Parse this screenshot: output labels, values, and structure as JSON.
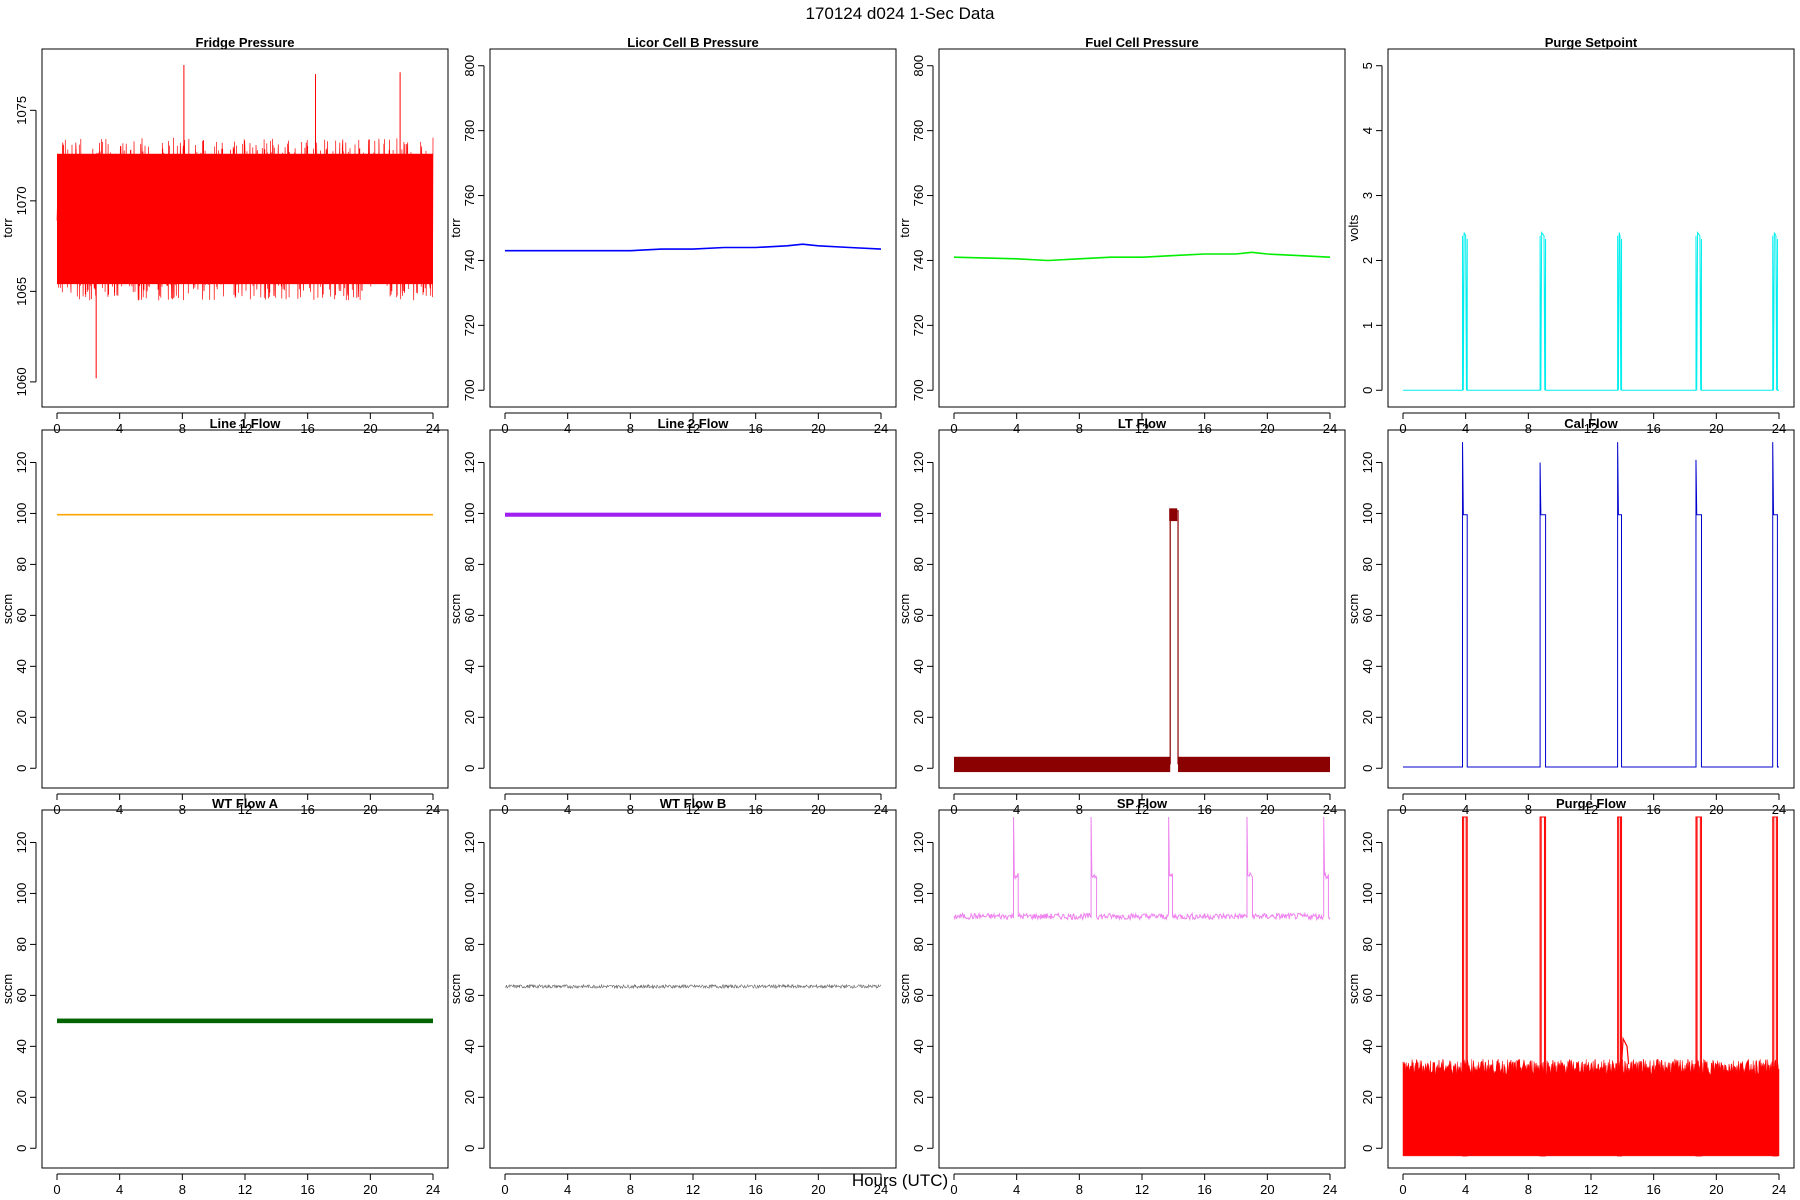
{
  "figure": {
    "title": "170124   d024   1-Sec Data",
    "xlabel": "Hours (UTC)"
  },
  "chart_data": [
    {
      "type": "line",
      "title": "Fridge Pressure",
      "ylabel": "torr",
      "color": "#ff0000",
      "xlim": [
        0,
        24
      ],
      "ylim": [
        1059,
        1078
      ],
      "xticks": [
        0,
        4,
        8,
        12,
        16,
        20,
        24
      ],
      "yticks": [
        1060,
        1065,
        1070,
        1075
      ],
      "style": "noise",
      "base": 1069,
      "amp": 4.5,
      "spikes": [
        [
          2.5,
          1060.2
        ],
        [
          8.1,
          1077.5
        ],
        [
          16.5,
          1077.0
        ],
        [
          21.9,
          1077.1
        ],
        [
          13.8,
          1065.5
        ]
      ],
      "x": [
        0,
        4,
        8,
        12,
        16,
        20,
        24
      ],
      "y": [
        1069,
        1069,
        1069,
        1069,
        1069,
        1069,
        1069
      ]
    },
    {
      "type": "line",
      "title": "Licor Cell B Pressure",
      "ylabel": "torr",
      "color": "#0000ff",
      "xlim": [
        0,
        24
      ],
      "ylim": [
        697,
        803
      ],
      "xticks": [
        0,
        4,
        8,
        12,
        16,
        20,
        24
      ],
      "yticks": [
        700,
        720,
        740,
        760,
        780,
        800
      ],
      "style": "line",
      "x": [
        0,
        4,
        8,
        10,
        12,
        14,
        16,
        18,
        19,
        20,
        22,
        24
      ],
      "y": [
        743,
        743,
        743,
        743.5,
        743.5,
        744,
        744,
        744.5,
        745,
        744.5,
        744,
        743.5
      ]
    },
    {
      "type": "line",
      "title": "Fuel Cell Pressure",
      "ylabel": "torr",
      "color": "#00ee00",
      "xlim": [
        0,
        24
      ],
      "ylim": [
        697,
        803
      ],
      "xticks": [
        0,
        4,
        8,
        12,
        16,
        20,
        24
      ],
      "yticks": [
        700,
        720,
        740,
        760,
        780,
        800
      ],
      "style": "line",
      "x": [
        0,
        4,
        6,
        8,
        10,
        12,
        14,
        16,
        18,
        19,
        20,
        22,
        24
      ],
      "y": [
        741,
        740.5,
        740,
        740.5,
        741,
        741,
        741.5,
        742,
        742,
        742.5,
        742,
        741.5,
        741
      ]
    },
    {
      "type": "line",
      "title": "Purge Setpoint",
      "ylabel": "volts",
      "color": "#00eeee",
      "xlim": [
        0,
        24
      ],
      "ylim": [
        -0.15,
        5.15
      ],
      "xticks": [
        0,
        4,
        8,
        12,
        16,
        20,
        24
      ],
      "yticks": [
        0,
        1,
        2,
        3,
        4,
        5
      ],
      "style": "pulse",
      "base": 0,
      "pulseHigh": 2.38,
      "pulses": [
        [
          3.8,
          4.1
        ],
        [
          8.75,
          9.1
        ],
        [
          13.7,
          13.95
        ],
        [
          18.7,
          19.05
        ],
        [
          23.6,
          23.9
        ]
      ],
      "x": [
        0,
        24
      ],
      "y": [
        0,
        0
      ]
    },
    {
      "type": "line",
      "title": "Line 1 Flow",
      "ylabel": "sccm",
      "color": "#ffa500",
      "xlim": [
        0,
        24
      ],
      "ylim": [
        -5,
        130
      ],
      "xticks": [
        0,
        4,
        8,
        12,
        16,
        20,
        24
      ],
      "yticks": [
        0,
        20,
        40,
        60,
        80,
        100,
        120
      ],
      "style": "line",
      "x": [
        0,
        24
      ],
      "y": [
        99.5,
        99.5
      ]
    },
    {
      "type": "line",
      "title": "Line 2 Flow",
      "ylabel": "sccm",
      "color": "#a020f0",
      "xlim": [
        0,
        24
      ],
      "ylim": [
        -5,
        130
      ],
      "xticks": [
        0,
        4,
        8,
        12,
        16,
        20,
        24
      ],
      "yticks": [
        0,
        20,
        40,
        60,
        80,
        100,
        120
      ],
      "style": "band",
      "base": 99.5,
      "amp": 0.8,
      "x": [
        0,
        24
      ],
      "y": [
        99.5,
        99.5
      ]
    },
    {
      "type": "line",
      "title": "LT Flow",
      "ylabel": "sccm",
      "color": "#8b0000",
      "xlim": [
        0,
        24
      ],
      "ylim": [
        -5,
        130
      ],
      "xticks": [
        0,
        4,
        8,
        12,
        16,
        20,
        24
      ],
      "yticks": [
        0,
        20,
        40,
        60,
        80,
        100,
        120
      ],
      "style": "band",
      "base": 1.5,
      "amp": 3,
      "pulses": [
        [
          13.8,
          14.3
        ]
      ],
      "pulseHigh": 101,
      "x": [
        0,
        13.8,
        14.3,
        24
      ],
      "y": [
        1.5,
        101,
        1.5,
        1.5
      ]
    },
    {
      "type": "line",
      "title": "Cal Flow",
      "ylabel": "sccm",
      "color": "#0000cd",
      "xlim": [
        0,
        24
      ],
      "ylim": [
        -5,
        130
      ],
      "xticks": [
        0,
        4,
        8,
        12,
        16,
        20,
        24
      ],
      "yticks": [
        0,
        20,
        40,
        60,
        80,
        100,
        120
      ],
      "style": "pulse",
      "base": 0.5,
      "pulseHigh": 99.5,
      "pulses": [
        [
          3.8,
          4.1
        ],
        [
          8.75,
          9.1
        ],
        [
          13.7,
          13.95
        ],
        [
          18.7,
          19.05
        ],
        [
          23.6,
          23.9
        ]
      ],
      "peaks": [
        128,
        120,
        128,
        121,
        128
      ],
      "x": [
        0,
        24
      ],
      "y": [
        0.5,
        0.5
      ]
    },
    {
      "type": "line",
      "title": "WT Flow A",
      "ylabel": "sccm",
      "color": "#006400",
      "xlim": [
        0,
        24
      ],
      "ylim": [
        -5,
        130
      ],
      "xticks": [
        0,
        4,
        8,
        12,
        16,
        20,
        24
      ],
      "yticks": [
        0,
        20,
        40,
        60,
        80,
        100,
        120
      ],
      "style": "band",
      "base": 50,
      "amp": 0.9,
      "x": [
        0,
        24
      ],
      "y": [
        50,
        50
      ]
    },
    {
      "type": "line",
      "title": "WT Flow B",
      "ylabel": "sccm",
      "color": "#666666",
      "xlim": [
        0,
        24
      ],
      "ylim": [
        -5,
        130
      ],
      "xticks": [
        0,
        4,
        8,
        12,
        16,
        20,
        24
      ],
      "yticks": [
        0,
        20,
        40,
        60,
        80,
        100,
        120
      ],
      "style": "noise",
      "base": 63.5,
      "amp": 0.7,
      "x": [
        0,
        24
      ],
      "y": [
        63.5,
        63.5
      ]
    },
    {
      "type": "line",
      "title": "SP Flow",
      "ylabel": "sccm",
      "color": "#ee82ee",
      "xlim": [
        0,
        24
      ],
      "ylim": [
        -5,
        130
      ],
      "xticks": [
        0,
        4,
        8,
        12,
        16,
        20,
        24
      ],
      "yticks": [
        0,
        20,
        40,
        60,
        80,
        100,
        120
      ],
      "style": "pulse",
      "base": 91,
      "pulseHigh": 107,
      "pulses": [
        [
          3.8,
          4.1
        ],
        [
          8.75,
          9.1
        ],
        [
          13.7,
          13.95
        ],
        [
          18.7,
          19.05
        ],
        [
          23.6,
          23.9
        ]
      ],
      "peaks": [
        130,
        130,
        130,
        130,
        130
      ],
      "x": [
        0,
        24
      ],
      "y": [
        91,
        91
      ]
    },
    {
      "type": "line",
      "title": "Purge Flow",
      "ylabel": "sccm",
      "color": "#ff0000",
      "xlim": [
        0,
        24
      ],
      "ylim": [
        -5,
        130
      ],
      "xticks": [
        0,
        4,
        8,
        12,
        16,
        20,
        24
      ],
      "yticks": [
        0,
        20,
        40,
        60,
        80,
        100,
        120
      ],
      "style": "fill",
      "base": -3,
      "top": 33,
      "pulses": [
        [
          3.8,
          4.1
        ],
        [
          8.75,
          9.1
        ],
        [
          13.7,
          13.95
        ],
        [
          18.7,
          19.05
        ],
        [
          23.6,
          23.9
        ]
      ],
      "peaks": [
        130,
        130,
        130,
        130,
        130
      ],
      "x": [
        0,
        24
      ],
      "y": [
        33,
        33
      ]
    }
  ]
}
